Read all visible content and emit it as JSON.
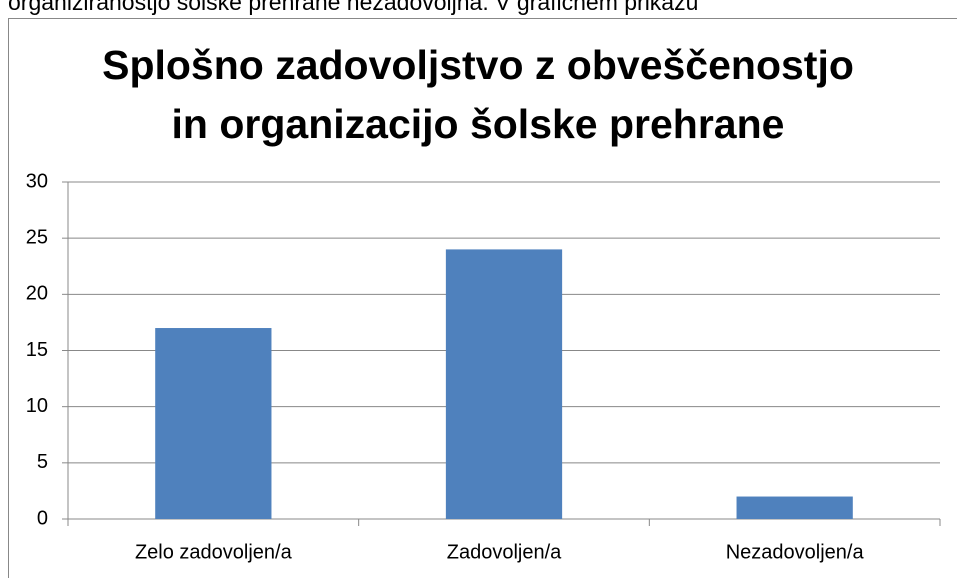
{
  "text_above": "organiziranostjo šolske prehrane nezadovoljna. V grafičnem prikazu",
  "chart_data": {
    "type": "bar",
    "title": [
      "Splošno zadovoljstvo z obveščenostjo",
      "in organizacijo šolske prehrane"
    ],
    "categories": [
      "Zelo zadovoljen/a",
      "Zadovoljen/a",
      "Nezadovoljen/a"
    ],
    "values": [
      17,
      24,
      2
    ],
    "color": "#4f81bd",
    "ylim": [
      0,
      30
    ],
    "yticks": [
      0,
      5,
      10,
      15,
      20,
      25,
      30
    ],
    "grid": true
  }
}
